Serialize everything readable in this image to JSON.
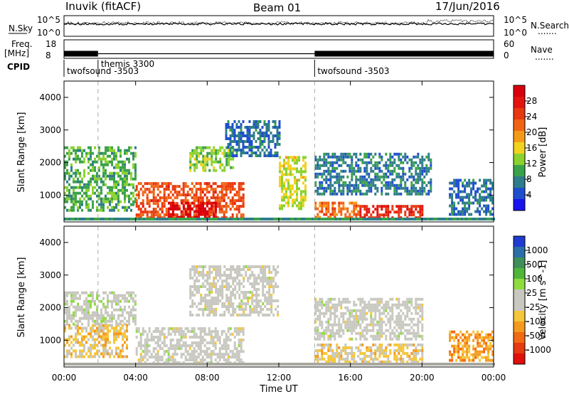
{
  "header": {
    "station": "Inuvik (fitACF)",
    "beam": "Beam 01",
    "date": "17/Jun/2016"
  },
  "left_labels": {
    "nsky": "N.Sky",
    "nsky_top": "10^5",
    "nsky_bottom": "10^0",
    "freq": "Freq.",
    "freq_unit": "[MHz]",
    "freq_top": "18",
    "freq_bottom": "8",
    "cpid": "CPID"
  },
  "right_labels": {
    "nsearch": "N.Search",
    "nsearch_top": "10^5",
    "nsearch_bottom": "10^0",
    "nave_top": "60",
    "nave_bottom": "0",
    "nave": "Nave",
    "dots": "......."
  },
  "cpid_segments": [
    {
      "label": "twofsound -3503",
      "start_hour": 0
    },
    {
      "label": "themis 3300",
      "start_hour": 1.9
    },
    {
      "label": "twofsound -3503",
      "start_hour": 14.0
    }
  ],
  "x_axis": {
    "title": "Time UT",
    "ticks": [
      "00:00",
      "04:00",
      "08:00",
      "12:00",
      "16:00",
      "20:00",
      "00:00"
    ]
  },
  "y_axis": {
    "title": "Slant Range [km]",
    "ticks": [
      "1000",
      "2000",
      "3000",
      "4000"
    ]
  },
  "power_colorbar": {
    "title": "Power [dB]",
    "ticks": [
      "4",
      "8",
      "12",
      "16",
      "20",
      "24",
      "28"
    ],
    "colors": [
      "#1a14f0",
      "#1f4fcf",
      "#2f7d8a",
      "#3aa24a",
      "#8bd22e",
      "#f2d21f",
      "#f59a18",
      "#f26414",
      "#e8380f",
      "#e3140d",
      "#d9000b"
    ]
  },
  "velocity_colorbar": {
    "title": "Velocity [m s^-1]",
    "ticks": [
      "1000",
      "500",
      "100",
      "25",
      "-25",
      "-100",
      "-500",
      "-1000"
    ],
    "colors": [
      "#1f3bd1",
      "#2a6fa8",
      "#3f8f58",
      "#4fb63b",
      "#8fdc3f",
      "#c8c8c0",
      "#c8c8c0",
      "#f5c63a",
      "#f59a1e",
      "#f26a14",
      "#e63a10",
      "#e00f0c"
    ]
  },
  "chart_data": {
    "type": "heatmap",
    "xlim": [
      0,
      24
    ],
    "ylim": [
      180,
      4500
    ],
    "panels": [
      {
        "quantity": "Power",
        "unit": "dB",
        "clim": [
          0,
          30
        ],
        "regions": [
          {
            "t0": 0.0,
            "t1": 4.0,
            "r0": 500,
            "r1": 2500,
            "value": 10
          },
          {
            "t0": 4.0,
            "t1": 10.0,
            "r0": 300,
            "r1": 1400,
            "value": 22
          },
          {
            "t0": 5.8,
            "t1": 8.5,
            "r0": 300,
            "r1": 800,
            "value": 29
          },
          {
            "t0": 7.0,
            "t1": 9.5,
            "r0": 1800,
            "r1": 2500,
            "value": 12
          },
          {
            "t0": 9.0,
            "t1": 12.0,
            "r0": 2200,
            "r1": 3300,
            "value": 6
          },
          {
            "t0": 12.0,
            "t1": 13.5,
            "r0": 600,
            "r1": 2200,
            "value": 14
          },
          {
            "t0": 14.0,
            "t1": 16.5,
            "r0": 300,
            "r1": 800,
            "value": 20
          },
          {
            "t0": 14.0,
            "t1": 20.5,
            "r0": 1000,
            "r1": 2300,
            "value": 7
          },
          {
            "t0": 16.5,
            "t1": 20.0,
            "r0": 300,
            "r1": 700,
            "value": 25
          },
          {
            "t0": 21.5,
            "t1": 24.0,
            "r0": 400,
            "r1": 1500,
            "value": 6
          }
        ]
      },
      {
        "quantity": "Velocity",
        "unit": "m s^-1",
        "clim": [
          -1000,
          1000
        ],
        "regions": [
          {
            "t0": 0.0,
            "t1": 3.5,
            "r0": 500,
            "r1": 1500,
            "value": -250
          },
          {
            "t0": 0.0,
            "t1": 4.0,
            "r0": 1500,
            "r1": 2500,
            "value": 50
          },
          {
            "t0": 4.0,
            "t1": 10.0,
            "r0": 300,
            "r1": 1400,
            "value": 0
          },
          {
            "t0": 7.0,
            "t1": 12.0,
            "r0": 1800,
            "r1": 3300,
            "value": 0
          },
          {
            "t0": 14.0,
            "t1": 20.0,
            "r0": 300,
            "r1": 900,
            "value": -200
          },
          {
            "t0": 14.0,
            "t1": 20.0,
            "r0": 1000,
            "r1": 2300,
            "value": 0
          },
          {
            "t0": 21.5,
            "t1": 24.0,
            "r0": 400,
            "r1": 1300,
            "value": -400
          }
        ]
      }
    ],
    "nsky_level": 3.0,
    "nsearch_level": 3.2,
    "freq_mhz": 10.5,
    "freq_gaps": [
      [
        1.9,
        14.0
      ]
    ]
  }
}
